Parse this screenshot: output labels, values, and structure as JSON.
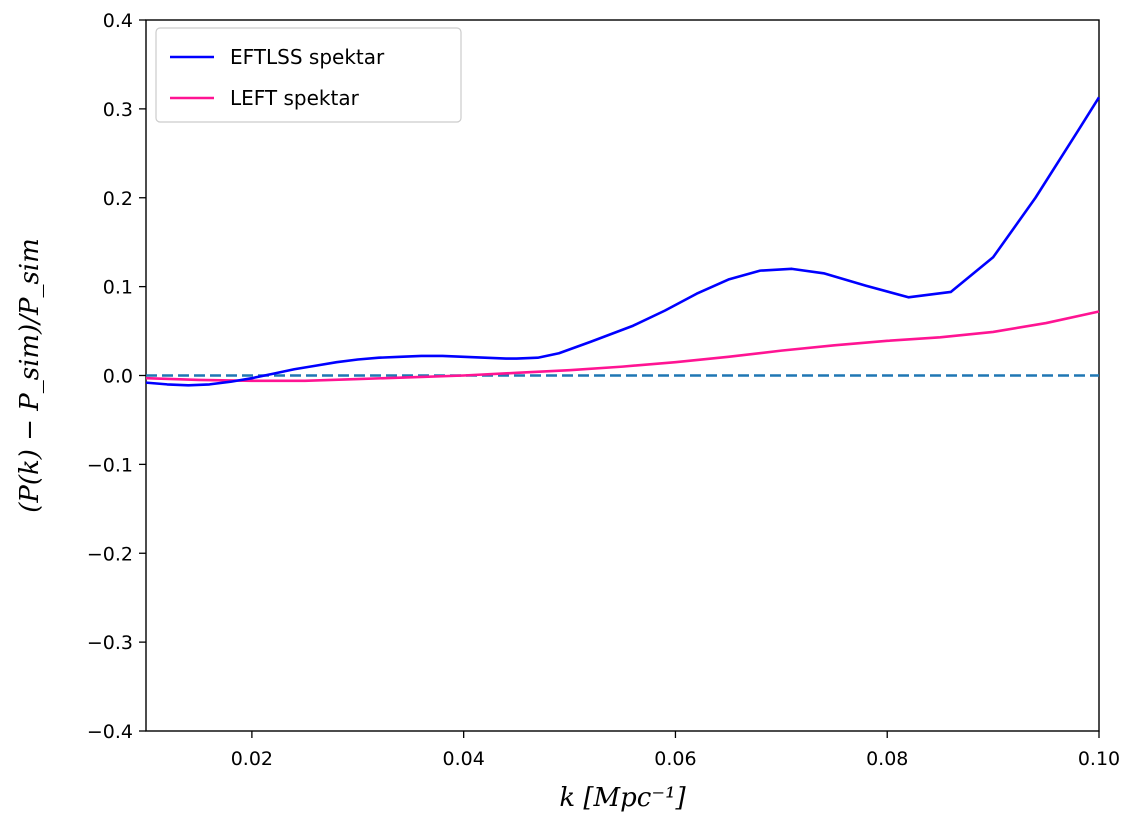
{
  "chart_data": {
    "type": "line",
    "title": "",
    "xlabel": "k [Mpc⁻¹]",
    "ylabel": "(P(k) − P_sim)/P_sim",
    "xlim": [
      0.01,
      0.1
    ],
    "ylim": [
      -0.4,
      0.4
    ],
    "x_ticks": [
      0.02,
      0.04,
      0.06,
      0.08,
      0.1
    ],
    "x_tick_labels": [
      "0.02",
      "0.04",
      "0.06",
      "0.08",
      "0.10"
    ],
    "y_ticks": [
      -0.4,
      -0.3,
      -0.2,
      -0.1,
      0.0,
      0.1,
      0.2,
      0.3,
      0.4
    ],
    "y_tick_labels": [
      "−0.4",
      "−0.3",
      "−0.2",
      "−0.1",
      "0.0",
      "0.1",
      "0.2",
      "0.3",
      "0.4"
    ],
    "grid": false,
    "legend_position": "top-left",
    "series": [
      {
        "name": "EFTLSS spektar",
        "color": "#0000ff",
        "x": [
          0.01,
          0.012,
          0.014,
          0.016,
          0.018,
          0.02,
          0.022,
          0.024,
          0.026,
          0.028,
          0.03,
          0.032,
          0.034,
          0.036,
          0.038,
          0.04,
          0.042,
          0.044,
          0.045,
          0.047,
          0.049,
          0.052,
          0.056,
          0.059,
          0.062,
          0.065,
          0.068,
          0.071,
          0.074,
          0.078,
          0.082,
          0.086,
          0.09,
          0.094,
          0.098,
          0.1
        ],
        "y": [
          -0.008,
          -0.01,
          -0.011,
          -0.01,
          -0.007,
          -0.003,
          0.002,
          0.007,
          0.011,
          0.015,
          0.018,
          0.02,
          0.021,
          0.022,
          0.022,
          0.021,
          0.02,
          0.019,
          0.019,
          0.02,
          0.025,
          0.038,
          0.056,
          0.073,
          0.092,
          0.108,
          0.118,
          0.12,
          0.115,
          0.101,
          0.088,
          0.094,
          0.133,
          0.2,
          0.275,
          0.313
        ]
      },
      {
        "name": "LEFT spektar",
        "color": "#ff1493",
        "x": [
          0.01,
          0.015,
          0.02,
          0.025,
          0.03,
          0.035,
          0.04,
          0.045,
          0.05,
          0.055,
          0.06,
          0.065,
          0.07,
          0.075,
          0.08,
          0.085,
          0.09,
          0.095,
          0.1
        ],
        "y": [
          -0.003,
          -0.005,
          -0.006,
          -0.006,
          -0.004,
          -0.002,
          0.0,
          0.003,
          0.006,
          0.01,
          0.015,
          0.021,
          0.028,
          0.034,
          0.039,
          0.043,
          0.049,
          0.059,
          0.072
        ]
      },
      {
        "color": "#1f77b4",
        "dashed": true,
        "x": [
          0.01,
          0.1
        ],
        "y": [
          0.0,
          0.0
        ]
      }
    ]
  }
}
